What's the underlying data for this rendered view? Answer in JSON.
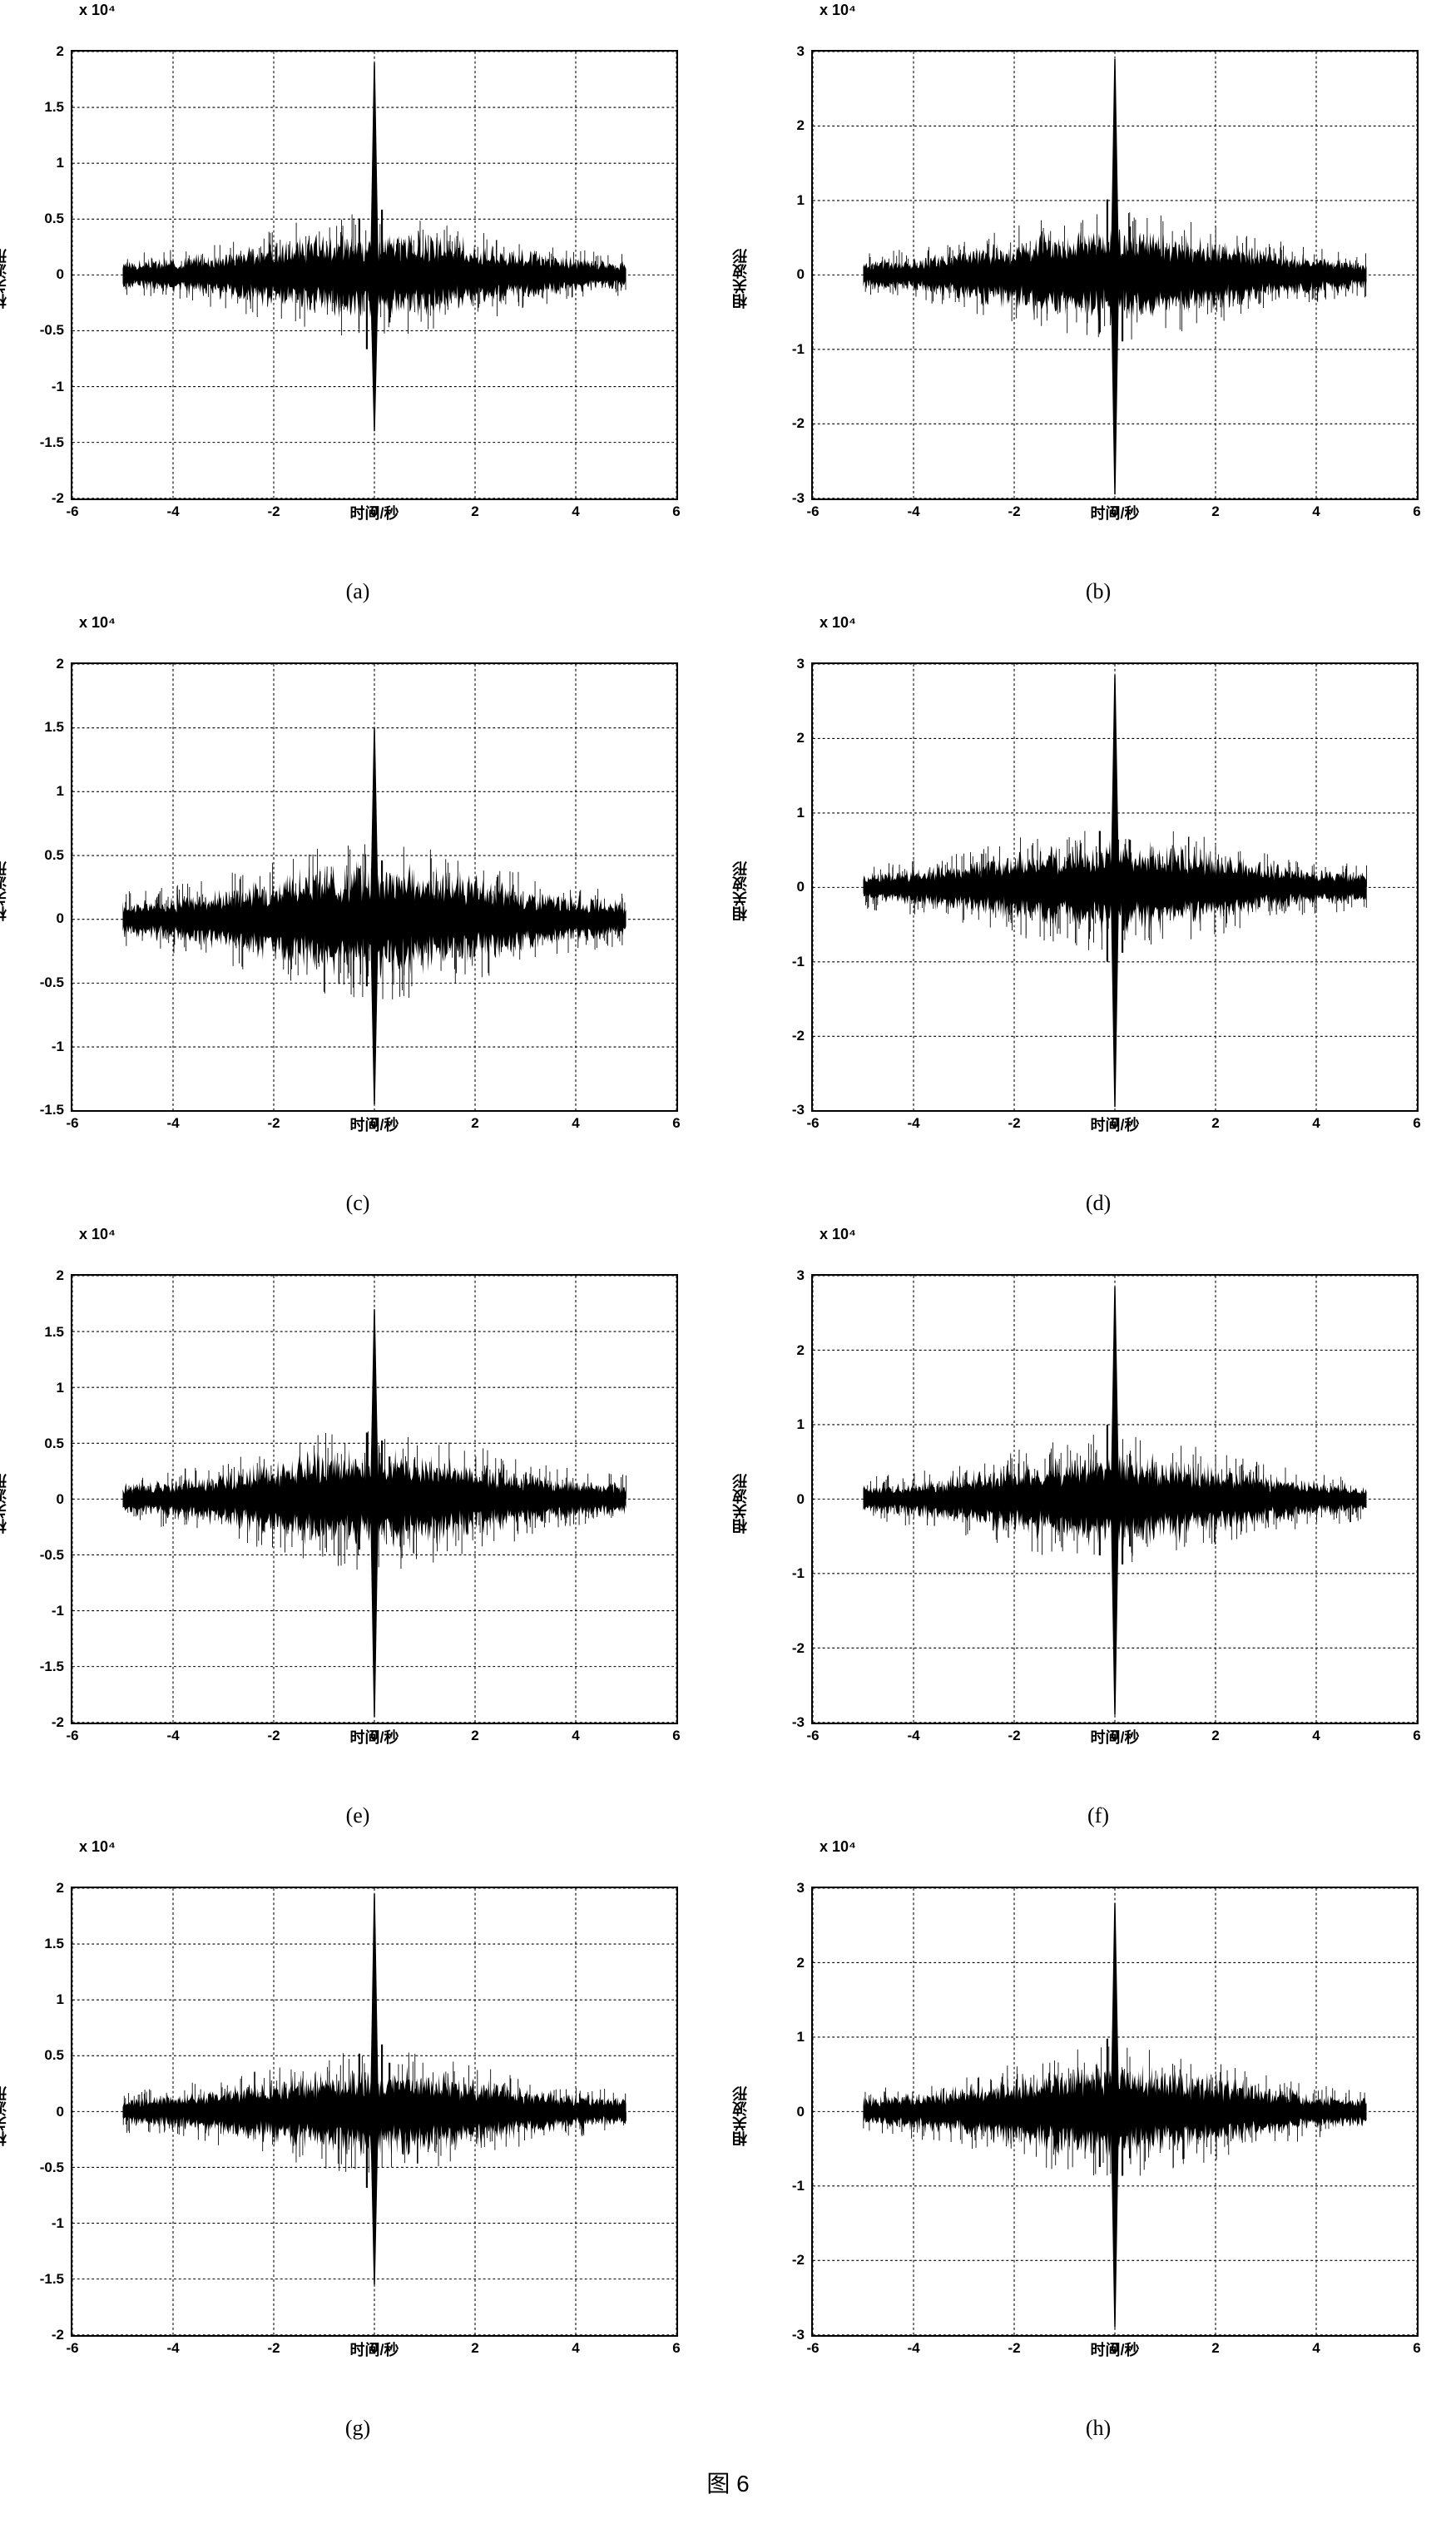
{
  "figure_label": "图 6",
  "common": {
    "xlabel": "时间/秒",
    "ylabel": "相关波形",
    "exponent": "x 10⁴",
    "xlim": [
      -6,
      6
    ],
    "xticks": [
      -6,
      -4,
      -2,
      0,
      2,
      4,
      6
    ],
    "grid_color": "#000000",
    "grid_dash": "4,4",
    "border_color": "#000000",
    "background": "#ffffff",
    "signal_color": "#000000",
    "tick_fontsize": 17,
    "label_fontsize": 18,
    "caption_fontsize": 26
  },
  "panels": [
    {
      "id": "a",
      "caption": "(a)",
      "ylim": [
        -2,
        2
      ],
      "yticks": [
        -2,
        -1.5,
        -1,
        -0.5,
        0,
        0.5,
        1,
        1.5,
        2
      ],
      "spike_pos": 1.9,
      "spike_neg": -1.4,
      "noise_amp": 0.35
    },
    {
      "id": "b",
      "caption": "(b)",
      "ylim": [
        -3,
        3
      ],
      "yticks": [
        -3,
        -2,
        -1,
        0,
        1,
        2,
        3
      ],
      "spike_pos": 2.9,
      "spike_neg": -2.95,
      "noise_amp": 0.55
    },
    {
      "id": "c",
      "caption": "(c)",
      "ylim": [
        -1.5,
        2
      ],
      "yticks": [
        -1.5,
        -1,
        -0.5,
        0,
        0.5,
        1,
        1.5,
        2
      ],
      "spike_pos": 1.5,
      "spike_neg": -1.45,
      "noise_amp": 0.4
    },
    {
      "id": "d",
      "caption": "(d)",
      "ylim": [
        -3,
        3
      ],
      "yticks": [
        -3,
        -2,
        -1,
        0,
        1,
        2,
        3
      ],
      "spike_pos": 2.85,
      "spike_neg": -2.95,
      "noise_amp": 0.55
    },
    {
      "id": "e",
      "caption": "(e)",
      "ylim": [
        -2,
        2
      ],
      "yticks": [
        -2,
        -1.5,
        -1,
        -0.5,
        0,
        0.5,
        1,
        1.5,
        2
      ],
      "spike_pos": 1.7,
      "spike_neg": -1.95,
      "noise_amp": 0.4
    },
    {
      "id": "f",
      "caption": "(f)",
      "ylim": [
        -3,
        3
      ],
      "yticks": [
        -3,
        -2,
        -1,
        0,
        1,
        2,
        3
      ],
      "spike_pos": 2.85,
      "spike_neg": -2.9,
      "noise_amp": 0.55
    },
    {
      "id": "g",
      "caption": "(g)",
      "ylim": [
        -2,
        2
      ],
      "yticks": [
        -2,
        -1.5,
        -1,
        -0.5,
        0,
        0.5,
        1,
        1.5,
        2
      ],
      "spike_pos": 1.95,
      "spike_neg": -1.55,
      "noise_amp": 0.35
    },
    {
      "id": "h",
      "caption": "(h)",
      "ylim": [
        -3,
        3
      ],
      "yticks": [
        -3,
        -2,
        -1,
        0,
        1,
        2,
        3
      ],
      "spike_pos": 2.8,
      "spike_neg": -2.9,
      "noise_amp": 0.55
    }
  ]
}
